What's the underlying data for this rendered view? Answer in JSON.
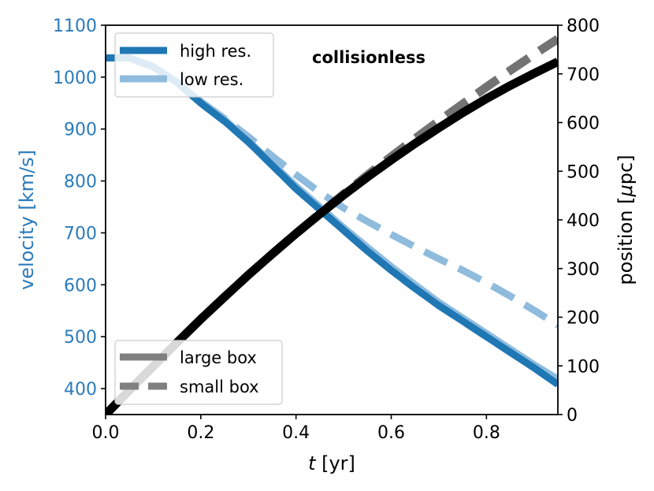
{
  "chart_data": {
    "type": "line",
    "annotation": "collisionless",
    "xlabel_italic": "t",
    "xlabel_unit": " [yr]",
    "ylabel_left": "velocity [km/s]",
    "ylabel_right_prefix": "position [",
    "ylabel_right_mu": "μ",
    "ylabel_right_suffix": "pc]",
    "xlim": [
      0.0,
      0.95
    ],
    "ylim_left": [
      350,
      1100
    ],
    "ylim_right": [
      0,
      800
    ],
    "x_ticks": [
      "0.0",
      "0.2",
      "0.4",
      "0.6",
      "0.8"
    ],
    "x_tick_values": [
      0.0,
      0.2,
      0.4,
      0.6,
      0.8
    ],
    "y_left_ticks": [
      "400",
      "500",
      "600",
      "700",
      "800",
      "900",
      "1000",
      "1100"
    ],
    "y_left_tick_values": [
      400,
      500,
      600,
      700,
      800,
      900,
      1000,
      1100
    ],
    "y_right_ticks": [
      "0",
      "100",
      "200",
      "300",
      "400",
      "500",
      "600",
      "700",
      "800"
    ],
    "y_right_tick_values": [
      0,
      100,
      200,
      300,
      400,
      500,
      600,
      700,
      800
    ],
    "colors": {
      "left_axis": "#2b7bba",
      "high_res": "#1f77b4",
      "low_res": "#8fbbdd",
      "position": "#000000",
      "legend_box": "#808080"
    },
    "legend_top": [
      "high res.",
      "low res."
    ],
    "legend_bottom": [
      "large box",
      "small box"
    ],
    "series": [
      {
        "name": "high res.",
        "axis": "left",
        "style": "solid",
        "x": [
          0.0,
          0.05,
          0.1,
          0.15,
          0.2,
          0.25,
          0.3,
          0.35,
          0.4,
          0.45,
          0.5,
          0.55,
          0.6,
          0.65,
          0.7,
          0.75,
          0.8,
          0.85,
          0.9,
          0.95
        ],
        "y": [
          1037,
          1037,
          1020,
          990,
          950,
          915,
          875,
          830,
          785,
          745,
          705,
          665,
          628,
          593,
          560,
          530,
          500,
          470,
          440,
          408
        ]
      },
      {
        "name": "high res. (small box)",
        "axis": "left",
        "style": "dashed",
        "x": [
          0.0,
          0.05,
          0.1,
          0.15,
          0.2,
          0.25,
          0.3,
          0.35,
          0.4,
          0.45,
          0.5,
          0.55,
          0.6,
          0.65,
          0.7,
          0.75,
          0.8,
          0.85,
          0.9,
          0.95
        ],
        "y": [
          1037,
          1037,
          1020,
          990,
          950,
          915,
          875,
          830,
          785,
          745,
          705,
          665,
          628,
          593,
          560,
          530,
          500,
          470,
          440,
          408
        ]
      },
      {
        "name": "low res.",
        "axis": "left",
        "style": "solid",
        "x": [
          0.0,
          0.05,
          0.1,
          0.15,
          0.2,
          0.25,
          0.3,
          0.35,
          0.4,
          0.45,
          0.5,
          0.55,
          0.6,
          0.65,
          0.7,
          0.75,
          0.8,
          0.85,
          0.9,
          0.95
        ],
        "y": [
          1037,
          1037,
          1020,
          990,
          953,
          918,
          877,
          833,
          790,
          750,
          710,
          672,
          635,
          600,
          566,
          536,
          506,
          476,
          446,
          418
        ]
      },
      {
        "name": "low res. (small box)",
        "axis": "left",
        "style": "dashed",
        "x": [
          0.0,
          0.05,
          0.1,
          0.15,
          0.2,
          0.25,
          0.3,
          0.35,
          0.4,
          0.45,
          0.5,
          0.55,
          0.6,
          0.65,
          0.7,
          0.75,
          0.8,
          0.85,
          0.9,
          0.95
        ],
        "y": [
          1037,
          1037,
          1020,
          990,
          953,
          920,
          885,
          848,
          812,
          778,
          748,
          722,
          697,
          673,
          650,
          628,
          604,
          578,
          551,
          522
        ]
      },
      {
        "name": "position (large box)",
        "axis": "right",
        "style": "solid",
        "x": [
          0.0,
          0.05,
          0.1,
          0.15,
          0.2,
          0.25,
          0.3,
          0.35,
          0.4,
          0.45,
          0.5,
          0.55,
          0.6,
          0.65,
          0.7,
          0.75,
          0.8,
          0.85,
          0.9,
          0.95
        ],
        "y": [
          0,
          50,
          99,
          148,
          196,
          242,
          287,
          330,
          372,
          412,
          451,
          488,
          523,
          557,
          589,
          620,
          649,
          676,
          701,
          725
        ]
      },
      {
        "name": "position (small box)",
        "axis": "right",
        "style": "dashed",
        "x": [
          0.0,
          0.05,
          0.1,
          0.15,
          0.2,
          0.25,
          0.3,
          0.35,
          0.4,
          0.45,
          0.5,
          0.55,
          0.6,
          0.65,
          0.7,
          0.75,
          0.8,
          0.85,
          0.9,
          0.95
        ],
        "y": [
          0,
          50,
          99,
          148,
          196,
          242,
          287,
          330,
          372,
          413,
          453,
          492,
          530,
          567,
          603,
          638,
          673,
          707,
          740,
          772
        ]
      }
    ]
  }
}
